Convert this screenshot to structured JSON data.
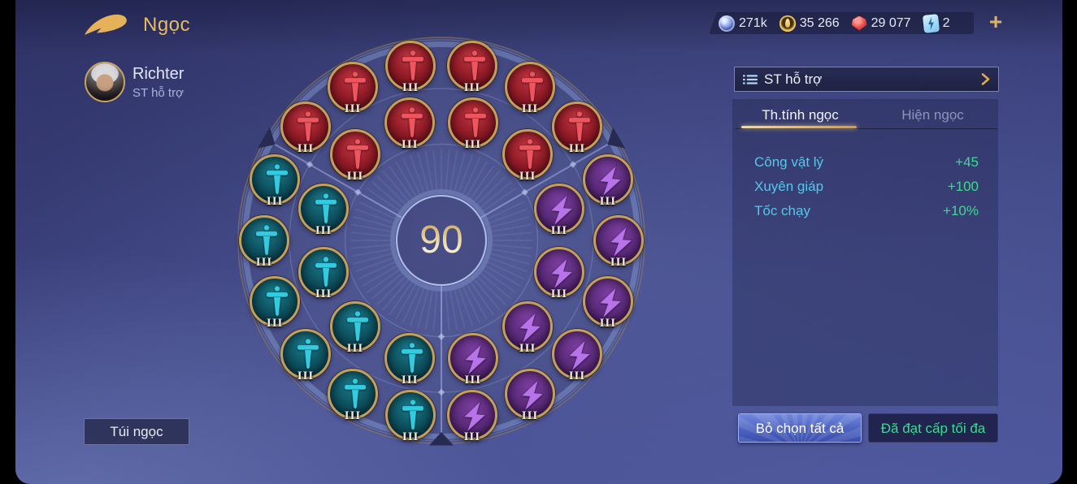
{
  "header": {
    "title": "Ngọc",
    "player": {
      "name": "Richter",
      "preset": "ST hỗ trợ"
    },
    "currencies": [
      {
        "icon": "blue-coin-icon",
        "value": "271k"
      },
      {
        "icon": "gold-coin-icon",
        "value": "35 266"
      },
      {
        "icon": "ruby-icon",
        "value": "29 077"
      },
      {
        "icon": "arcana-card-icon",
        "value": "2"
      }
    ],
    "add_button": "+"
  },
  "wheel": {
    "total_level": "90",
    "gem_size": 62,
    "outer_radius": 218,
    "inner_radius": 150,
    "sectors": [
      {
        "name": "attack-red",
        "glyph": "sword",
        "level": "III",
        "base": "#8d1a26",
        "light": "#c23540",
        "dark": "#520c14",
        "glyph_color": "#f0545c",
        "outer_angles": [
          140,
          120,
          100,
          80,
          60,
          40
        ],
        "inner_angles": [
          135,
          105,
          75,
          45
        ]
      },
      {
        "name": "defense-teal",
        "glyph": "sword",
        "level": "III",
        "base": "#0d4f5e",
        "light": "#1b7a8a",
        "dark": "#062c36",
        "glyph_color": "#33cbdf",
        "outer_angles": [
          160,
          180,
          200,
          220,
          240,
          260
        ],
        "inner_angles": [
          165,
          195,
          225,
          255
        ]
      },
      {
        "name": "magic-purple",
        "glyph": "bolt",
        "level": "III",
        "base": "#5b2a7a",
        "light": "#7a3d9e",
        "dark": "#341247",
        "glyph_color": "#b873ea",
        "outer_angles": [
          280,
          300,
          320,
          340,
          0,
          20
        ],
        "inner_angles": [
          285,
          315,
          345,
          15
        ]
      }
    ]
  },
  "panel": {
    "header": {
      "label": "ST hỗ trợ"
    },
    "tabs": [
      {
        "label": "Th.tính ngọc",
        "active": true
      },
      {
        "label": "Hiện ngọc",
        "active": false
      }
    ],
    "stats": [
      {
        "label": "Công vật lý",
        "value": "+45"
      },
      {
        "label": "Xuyên giáp",
        "value": "+100"
      },
      {
        "label": "Tốc chạy",
        "value": "+10%"
      }
    ],
    "buttons": {
      "deselect": "Bỏ chọn tất cả",
      "max_level": "Đã đạt cấp tối đa"
    }
  },
  "footer": {
    "bag_button": "Túi ngọc"
  },
  "colors": {
    "accent_gold": "#e9ba63",
    "stat_label": "#57c6ea",
    "stat_value": "#3eda92",
    "tab_inactive": "#8d95bb"
  }
}
